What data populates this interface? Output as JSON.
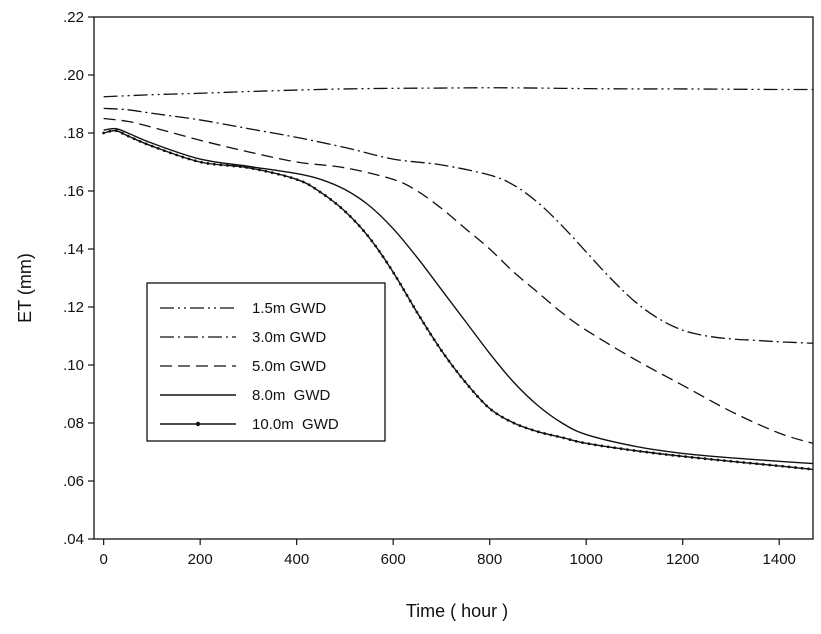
{
  "chart_data": {
    "type": "line",
    "title": "",
    "xlabel": "Time ( hour )",
    "ylabel": "ET (mm)",
    "xlim": [
      -20,
      1470
    ],
    "ylim": [
      0.04,
      0.22
    ],
    "x_ticks": [
      0,
      200,
      400,
      600,
      800,
      1000,
      1200,
      1400
    ],
    "x_tick_labels": [
      "0",
      "200",
      "400",
      "600",
      "800",
      "1000",
      "1200",
      "1400"
    ],
    "y_ticks": [
      0.04,
      0.06,
      0.08,
      0.1,
      0.12,
      0.14,
      0.16,
      0.18,
      0.2,
      0.22
    ],
    "y_tick_labels": [
      ".04",
      ".06",
      ".08",
      ".10",
      ".12",
      ".14",
      ".16",
      ".18",
      ".20",
      ".22"
    ],
    "grid": false,
    "legend_position": "left-middle",
    "series": [
      {
        "name": "1.5m GWD",
        "style": "dash-dot-dot",
        "x": [
          0,
          100,
          200,
          300,
          400,
          500,
          600,
          700,
          800,
          900,
          1000,
          1100,
          1200,
          1300,
          1400,
          1470
        ],
        "y": [
          0.1925,
          0.1932,
          0.1937,
          0.1943,
          0.1948,
          0.1952,
          0.1954,
          0.1955,
          0.1956,
          0.1955,
          0.1953,
          0.1952,
          0.1952,
          0.1951,
          0.195,
          0.195
        ]
      },
      {
        "name": "3.0m GWD",
        "style": "dash-dot",
        "x": [
          0,
          50,
          100,
          200,
          300,
          400,
          500,
          600,
          700,
          800,
          850,
          900,
          950,
          1000,
          1050,
          1100,
          1150,
          1200,
          1250,
          1300,
          1350,
          1400,
          1470
        ],
        "y": [
          0.1885,
          0.188,
          0.1868,
          0.1845,
          0.1815,
          0.1785,
          0.175,
          0.171,
          0.169,
          0.1655,
          0.162,
          0.156,
          0.148,
          0.139,
          0.13,
          0.122,
          0.116,
          0.112,
          0.11,
          0.109,
          0.1085,
          0.108,
          0.1075
        ]
      },
      {
        "name": "5.0m GWD",
        "style": "dashed",
        "x": [
          0,
          50,
          100,
          200,
          300,
          400,
          500,
          600,
          650,
          700,
          750,
          800,
          850,
          900,
          950,
          1000,
          1100,
          1200,
          1300,
          1400,
          1470
        ],
        "y": [
          0.185,
          0.184,
          0.182,
          0.1775,
          0.1735,
          0.17,
          0.168,
          0.164,
          0.16,
          0.154,
          0.147,
          0.14,
          0.132,
          0.125,
          0.118,
          0.112,
          0.102,
          0.093,
          0.084,
          0.0765,
          0.073
        ]
      },
      {
        "name": "8.0m  GWD",
        "style": "solid",
        "x": [
          0,
          25,
          50,
          100,
          200,
          300,
          400,
          450,
          500,
          550,
          600,
          650,
          700,
          750,
          800,
          850,
          900,
          950,
          1000,
          1100,
          1200,
          1300,
          1400,
          1470
        ],
        "y": [
          0.181,
          0.1815,
          0.18,
          0.1765,
          0.171,
          0.1685,
          0.166,
          0.164,
          0.1605,
          0.155,
          0.147,
          0.137,
          0.126,
          0.115,
          0.104,
          0.094,
          0.086,
          0.08,
          0.076,
          0.072,
          0.0695,
          0.068,
          0.0668,
          0.066
        ]
      },
      {
        "name": "10.0m  GWD",
        "style": "solid-dotted",
        "x": [
          0,
          25,
          50,
          100,
          200,
          300,
          400,
          450,
          500,
          550,
          600,
          650,
          700,
          750,
          800,
          850,
          900,
          950,
          1000,
          1100,
          1200,
          1300,
          1400,
          1470
        ],
        "y": [
          0.18,
          0.1808,
          0.179,
          0.1755,
          0.17,
          0.168,
          0.164,
          0.1595,
          0.153,
          0.144,
          0.132,
          0.118,
          0.105,
          0.094,
          0.085,
          0.08,
          0.077,
          0.075,
          0.073,
          0.0705,
          0.0685,
          0.0668,
          0.0652,
          0.064
        ]
      }
    ]
  }
}
